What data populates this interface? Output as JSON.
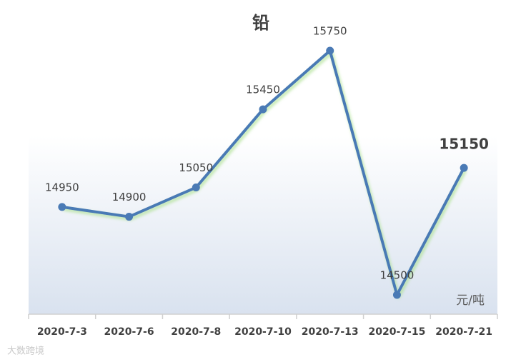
{
  "chart_data": {
    "type": "line",
    "title": "铅",
    "categories": [
      "2020-7-3",
      "2020-7-6",
      "2020-7-8",
      "2020-7-10",
      "2020-7-13",
      "2020-7-15",
      "2020-7-21"
    ],
    "values": [
      14950,
      14900,
      15050,
      15450,
      15750,
      14500,
      15150
    ],
    "color": "#4a7ab5",
    "unit": "元/吨",
    "watermark": "大数跨境"
  }
}
